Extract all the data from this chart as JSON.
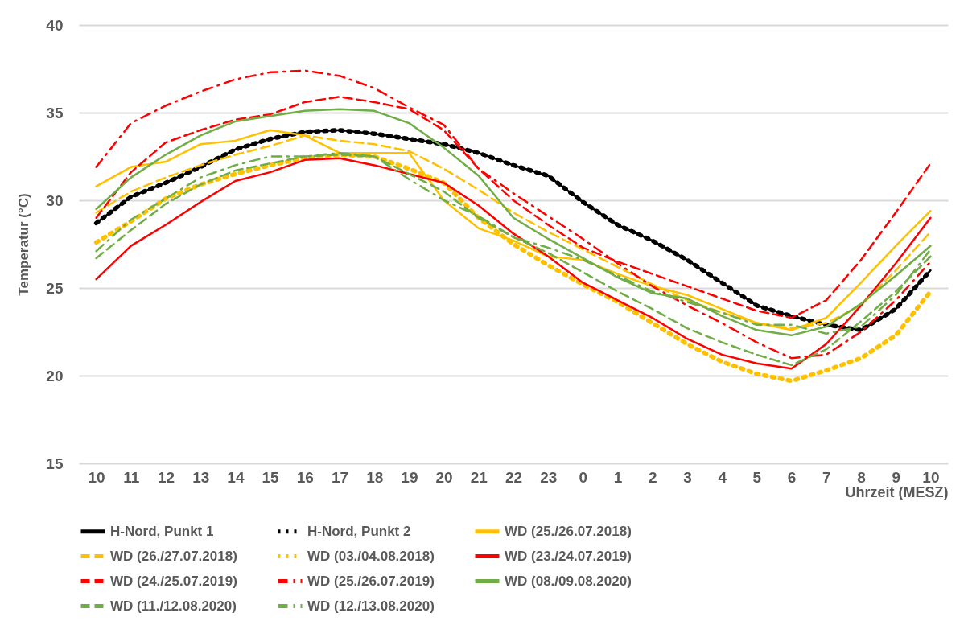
{
  "chart_data": {
    "type": "line",
    "xlabel": "Uhrzeit (MESZ)",
    "ylabel": "Temperatur (°C)",
    "categories": [
      "10",
      "11",
      "12",
      "13",
      "14",
      "15",
      "16",
      "17",
      "18",
      "19",
      "20",
      "21",
      "22",
      "23",
      "0",
      "1",
      "2",
      "3",
      "4",
      "5",
      "6",
      "7",
      "8",
      "9",
      "10"
    ],
    "ylim": [
      15,
      40
    ],
    "yticks": [
      15,
      20,
      25,
      30,
      35,
      40
    ],
    "grid": "y",
    "legend": "bottom",
    "series": [
      {
        "name": "H-Nord, Punkt 1",
        "color": "#000000",
        "line_style": "solid",
        "values": [
          28.7,
          30.2,
          31.0,
          31.9,
          32.9,
          33.5,
          33.9,
          34.0,
          33.8,
          33.5,
          33.2,
          32.7,
          32.0,
          31.4,
          29.9,
          28.6,
          27.7,
          26.6,
          25.3,
          24.0,
          23.4,
          22.9,
          22.6,
          23.8,
          26.0
        ]
      },
      {
        "name": "H-Nord, Punkt 2",
        "color": "#000000",
        "line_style": "dotted",
        "values": [
          28.7,
          30.2,
          31.0,
          31.9,
          32.9,
          33.5,
          33.9,
          34.0,
          33.8,
          33.5,
          33.2,
          32.7,
          32.0,
          31.4,
          29.9,
          28.6,
          27.7,
          26.6,
          25.3,
          24.0,
          23.4,
          22.9,
          22.6,
          23.8,
          26.0
        ]
      },
      {
        "name": "WD (25./26.07.2018)",
        "color": "#ffc000",
        "line_style": "solid",
        "values": [
          30.8,
          31.9,
          32.2,
          33.2,
          33.4,
          34.0,
          33.7,
          32.7,
          32.7,
          32.7,
          30.0,
          28.4,
          27.7,
          26.8,
          26.6,
          25.8,
          25.1,
          24.6,
          23.8,
          23.0,
          22.6,
          23.3,
          25.3,
          27.4,
          29.4
        ]
      },
      {
        "name": "WD (26./27.07.2018)",
        "color": "#ffc000",
        "line_style": "dashed",
        "values": [
          29.3,
          30.5,
          31.3,
          32.0,
          32.6,
          33.1,
          33.7,
          33.4,
          33.2,
          32.8,
          31.8,
          30.6,
          29.3,
          28.2,
          27.2,
          26.2,
          25.2,
          24.3,
          23.6,
          23.0,
          22.7,
          23.0,
          24.0,
          26.0,
          28.2
        ]
      },
      {
        "name": "WD (03./04.08.2018)",
        "color": "#ffc000",
        "line_style": "dotted",
        "values": [
          27.6,
          28.8,
          30.1,
          30.9,
          31.5,
          32.0,
          32.4,
          32.6,
          32.5,
          31.8,
          31.0,
          29.0,
          27.5,
          26.3,
          25.2,
          24.2,
          23.0,
          21.8,
          20.8,
          20.1,
          19.7,
          20.3,
          21.0,
          22.3,
          24.8
        ]
      },
      {
        "name": "WD (23./24.07.2019)",
        "color": "#ff0000",
        "line_style": "solid",
        "values": [
          25.5,
          27.4,
          28.6,
          29.9,
          31.1,
          31.6,
          32.3,
          32.4,
          32.0,
          31.5,
          31.0,
          29.7,
          28.1,
          26.8,
          25.3,
          24.3,
          23.3,
          22.1,
          21.2,
          20.7,
          20.4,
          21.8,
          24.0,
          26.4,
          29.0
        ]
      },
      {
        "name": "WD (24./25.07.2019)",
        "color": "#ff0000",
        "line_style": "dashed",
        "values": [
          29.0,
          31.6,
          33.3,
          34.0,
          34.6,
          34.9,
          35.6,
          35.9,
          35.6,
          35.2,
          34.0,
          31.8,
          30.0,
          28.6,
          27.3,
          26.5,
          25.8,
          25.1,
          24.4,
          23.7,
          23.3,
          24.3,
          26.6,
          29.3,
          32.1
        ]
      },
      {
        "name": "WD (25./26.07.2019)",
        "color": "#ff0000",
        "line_style": "dashdot",
        "values": [
          31.9,
          34.4,
          35.4,
          36.2,
          36.9,
          37.3,
          37.4,
          37.1,
          36.4,
          35.3,
          34.3,
          31.8,
          30.4,
          29.1,
          27.8,
          26.4,
          25.1,
          24.0,
          23.0,
          21.9,
          21.0,
          21.2,
          22.5,
          24.3,
          26.5
        ]
      },
      {
        "name": "WD (08./09.08.2020)",
        "color": "#70ad47",
        "line_style": "solid",
        "values": [
          29.5,
          31.3,
          32.6,
          33.7,
          34.5,
          34.8,
          35.1,
          35.2,
          35.1,
          34.4,
          33.0,
          31.4,
          29.0,
          27.8,
          26.7,
          25.6,
          24.7,
          24.4,
          23.4,
          22.6,
          22.3,
          22.8,
          24.1,
          25.7,
          27.4
        ]
      },
      {
        "name": "WD (11./12.08.2020)",
        "color": "#70ad47",
        "line_style": "dashed",
        "values": [
          26.7,
          28.3,
          29.8,
          30.9,
          31.7,
          32.1,
          32.5,
          32.6,
          32.5,
          31.5,
          30.5,
          29.0,
          27.9,
          27.0,
          25.9,
          24.8,
          23.8,
          22.7,
          21.9,
          21.2,
          20.6,
          21.5,
          23.1,
          24.8,
          26.8
        ]
      },
      {
        "name": "WD (12./13.08.2020)",
        "color": "#70ad47",
        "line_style": "dashdot",
        "values": [
          27.1,
          28.9,
          30.1,
          31.3,
          32.0,
          32.5,
          32.5,
          32.7,
          32.5,
          31.2,
          30.0,
          29.1,
          27.9,
          27.3,
          26.6,
          25.7,
          24.8,
          24.2,
          23.6,
          22.9,
          22.9,
          22.4,
          22.8,
          24.6,
          27.2
        ]
      }
    ]
  }
}
